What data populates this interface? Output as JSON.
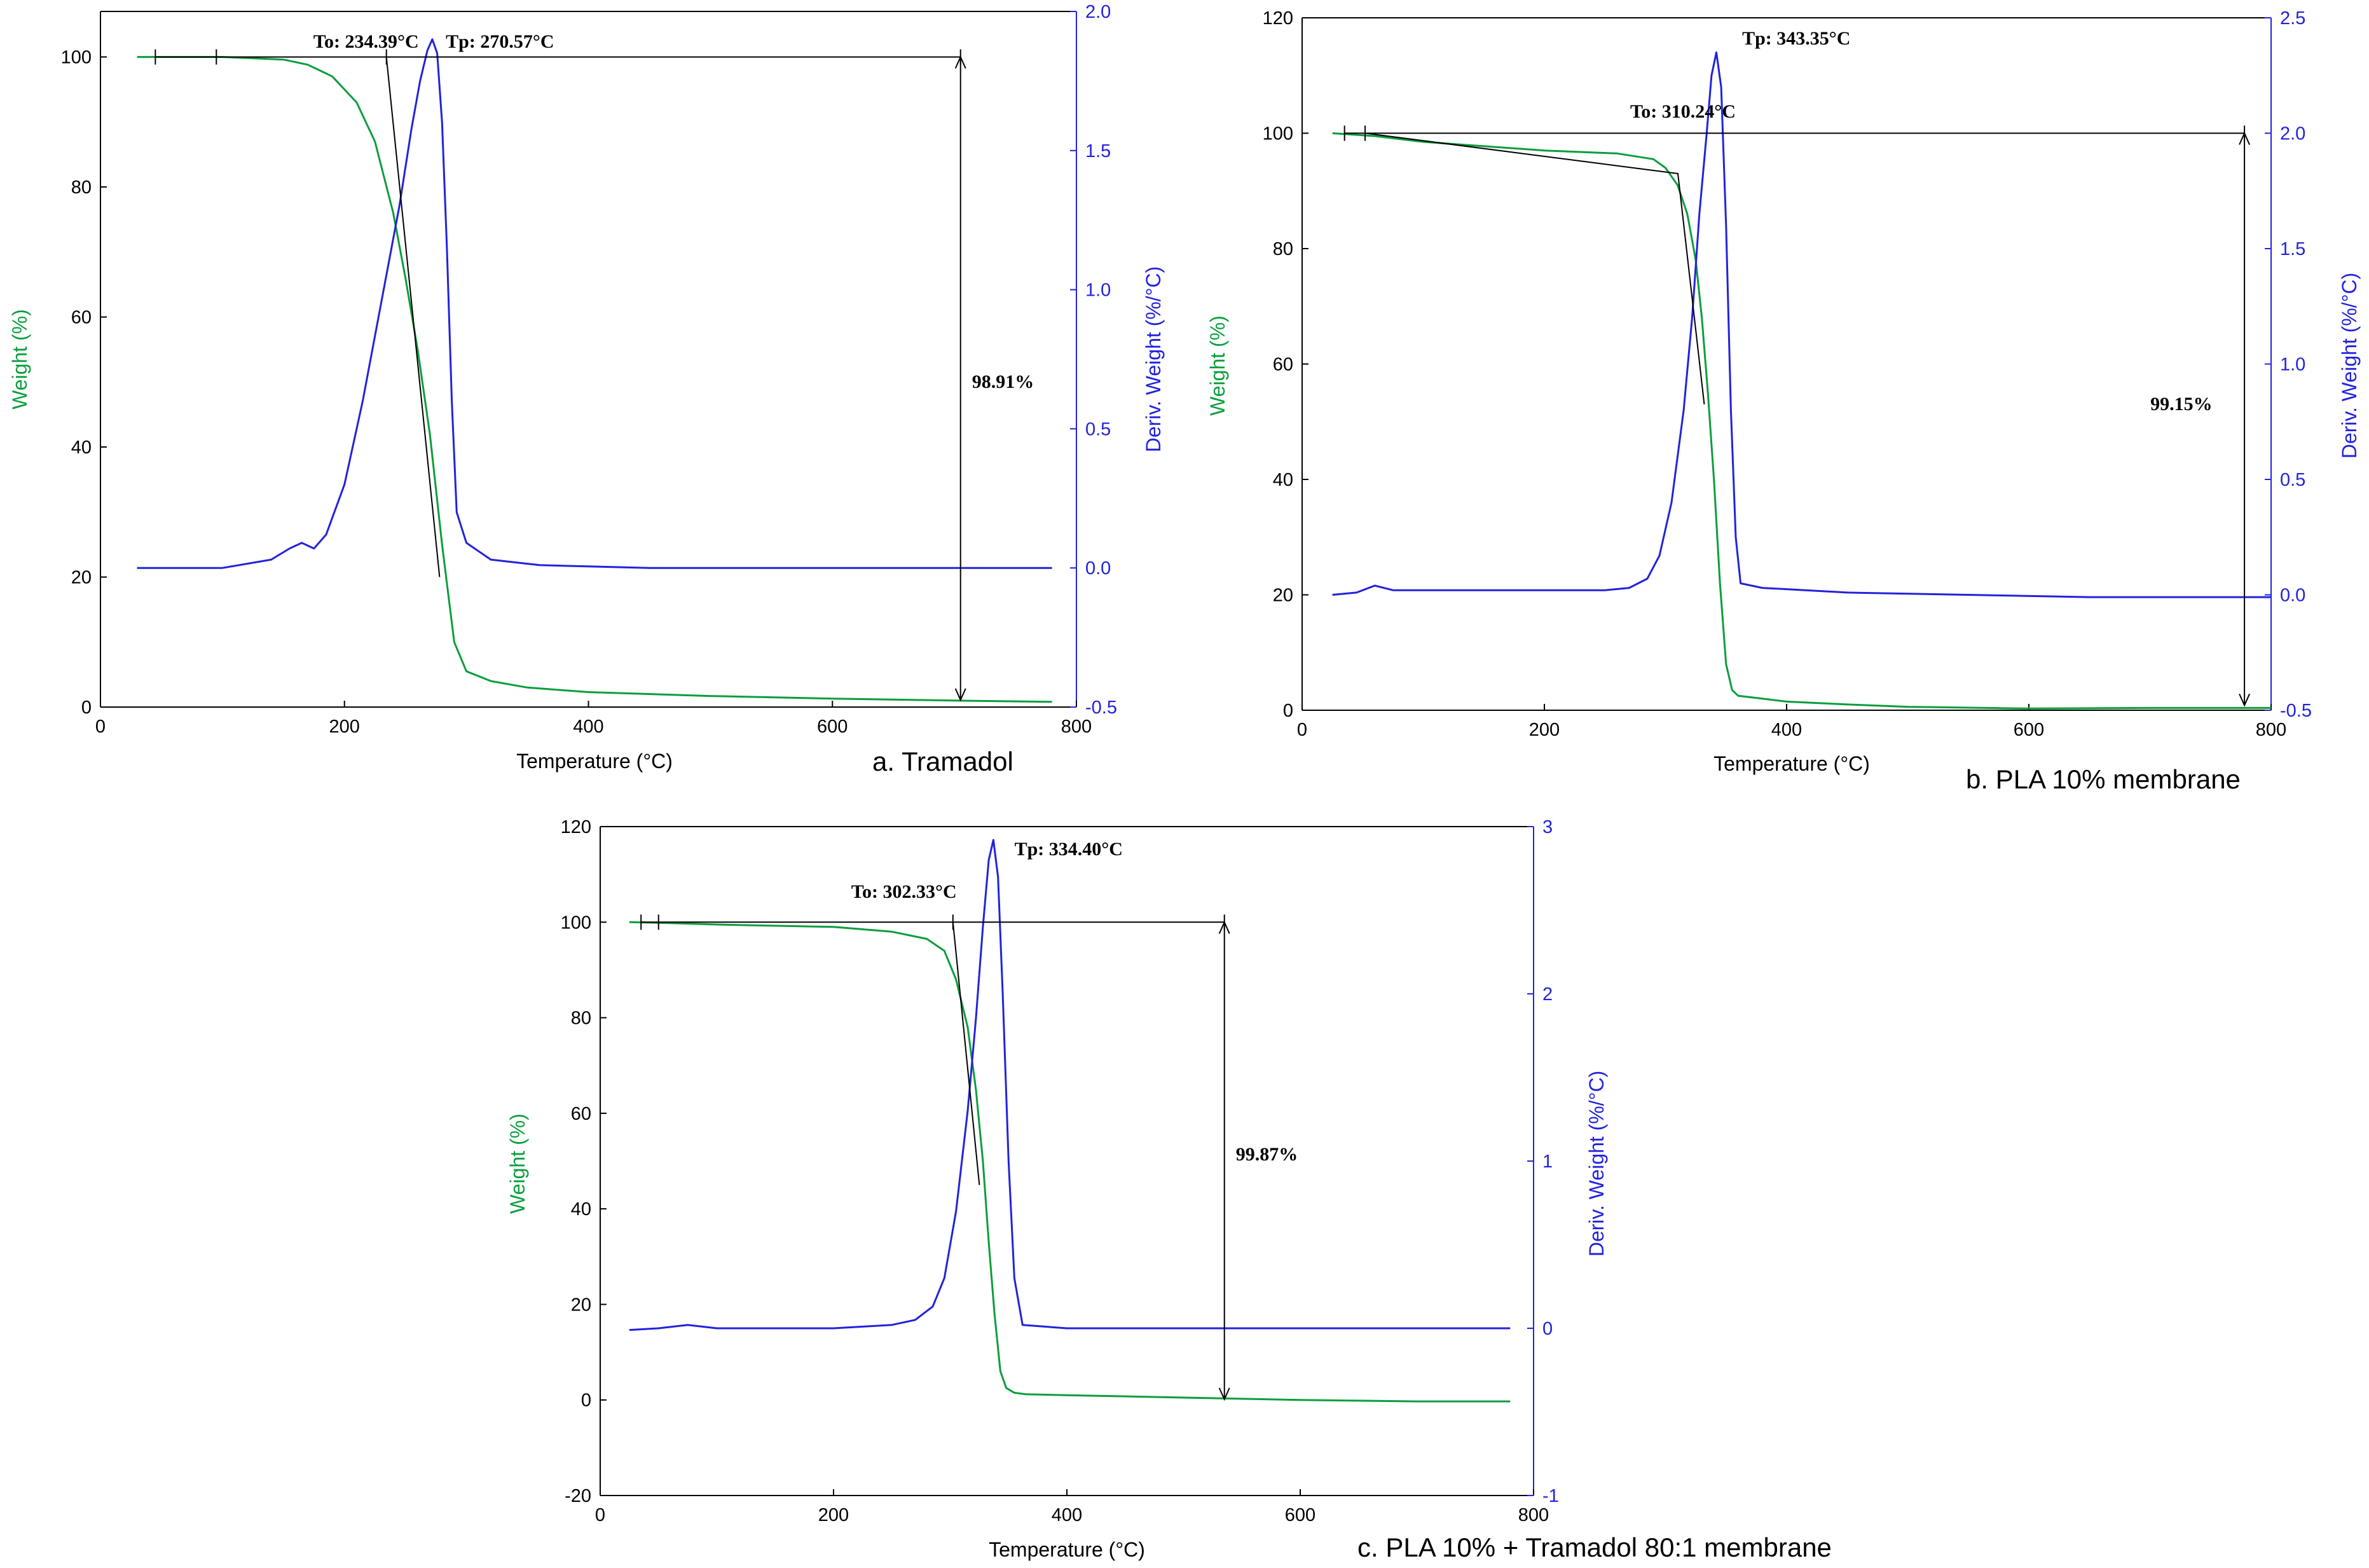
{
  "colors": {
    "weight": "#0a9e3c",
    "deriv": "#2222dd",
    "construction": "#000000"
  },
  "chart_data": [
    {
      "type": "line",
      "caption": "a. Tramadol",
      "xlabel": "Temperature (°C)",
      "ylabel": "Weight (%)",
      "y2label": "Deriv. Weight (%/°C)",
      "xlim": [
        0,
        800
      ],
      "ylim": [
        0,
        107
      ],
      "y2lim": [
        -0.5,
        2.0
      ],
      "xticks": [
        0,
        200,
        400,
        600,
        800
      ],
      "yticks": [
        0,
        20,
        40,
        60,
        80,
        100
      ],
      "y2ticks": [
        -0.5,
        0.0,
        0.5,
        1.0,
        1.5,
        2.0
      ],
      "y2tick_labels": [
        "-0.5",
        "0.0",
        "0.5",
        "1.0",
        "1.5",
        "2.0"
      ],
      "series": [
        {
          "axis": "left",
          "x": [
            30,
            100,
            150,
            170,
            190,
            210,
            225,
            240,
            250,
            260,
            270,
            280,
            290,
            300,
            320,
            350,
            400,
            500,
            600,
            700,
            780
          ],
          "y": [
            100,
            100,
            99.6,
            98.8,
            97,
            93,
            87,
            76,
            66,
            55,
            42,
            25,
            10,
            5.5,
            4,
            3,
            2.3,
            1.7,
            1.3,
            1.0,
            0.8
          ]
        },
        {
          "axis": "right",
          "x": [
            30,
            100,
            140,
            155,
            165,
            175,
            185,
            200,
            215,
            230,
            245,
            255,
            262,
            268,
            272,
            276,
            280,
            284,
            288,
            292,
            300,
            320,
            360,
            450,
            600,
            780
          ],
          "y": [
            0,
            0,
            0.03,
            0.07,
            0.09,
            0.07,
            0.12,
            0.3,
            0.6,
            0.95,
            1.3,
            1.58,
            1.75,
            1.86,
            1.9,
            1.85,
            1.6,
            1.15,
            0.6,
            0.2,
            0.09,
            0.03,
            0.01,
            0,
            0,
            0
          ]
        }
      ],
      "annotations": {
        "onset_label": "To: 234.39°C",
        "onset_x": 234.39,
        "peak_label": "Tp: 270.57°C",
        "peak_x": 270.57,
        "loss_label": "98.91%",
        "baseline_y": 100,
        "baseline_x": [
          45,
          705
        ],
        "baseline_marks_x": [
          45,
          95,
          234.39,
          705
        ],
        "tangent": {
          "x": [
            234.39,
            278
          ],
          "y": [
            100,
            20
          ]
        },
        "loss_arrow": {
          "x": 705,
          "y": [
            100,
            1.09
          ]
        }
      }
    },
    {
      "type": "line",
      "caption": "b. PLA 10% membrane",
      "xlabel": "Temperature (°C)",
      "ylabel": "Weight (%)",
      "y2label": "Deriv. Weight (%/°C)",
      "xlim": [
        0,
        800
      ],
      "ylim": [
        0,
        120
      ],
      "y2lim": [
        -0.5,
        2.5
      ],
      "xticks": [
        0,
        200,
        400,
        600,
        800
      ],
      "yticks": [
        0,
        20,
        40,
        60,
        80,
        100,
        120
      ],
      "y2ticks": [
        -0.5,
        0.0,
        0.5,
        1.0,
        1.5,
        2.0,
        2.5
      ],
      "y2tick_labels": [
        "-0.5",
        "0.0",
        "0.5",
        "1.0",
        "1.5",
        "2.0",
        "2.5"
      ],
      "series": [
        {
          "axis": "left",
          "x": [
            25,
            60,
            100,
            200,
            260,
            290,
            300,
            310,
            318,
            325,
            330,
            335,
            340,
            345,
            350,
            355,
            360,
            380,
            400,
            450,
            500,
            600,
            700,
            800
          ],
          "y": [
            100,
            99.5,
            98.5,
            97,
            96.5,
            95.5,
            94,
            91,
            86,
            78,
            68,
            55,
            40,
            22,
            8,
            3.5,
            2.5,
            2,
            1.5,
            1,
            0.6,
            0.3,
            0.4,
            0.4
          ]
        },
        {
          "axis": "right",
          "x": [
            25,
            45,
            60,
            75,
            100,
            150,
            200,
            250,
            270,
            285,
            295,
            305,
            315,
            322,
            328,
            334,
            338,
            342,
            346,
            350,
            354,
            358,
            362,
            380,
            450,
            550,
            650,
            800
          ],
          "y": [
            0,
            0.01,
            0.04,
            0.02,
            0.02,
            0.02,
            0.02,
            0.02,
            0.03,
            0.07,
            0.17,
            0.4,
            0.8,
            1.2,
            1.65,
            2.0,
            2.25,
            2.35,
            2.2,
            1.6,
            0.8,
            0.25,
            0.05,
            0.03,
            0.01,
            0.0,
            -0.01,
            -0.01
          ]
        }
      ],
      "annotations": {
        "onset_label": "To: 310.24°C",
        "onset_x": 310.24,
        "peak_label": "Tp: 343.35°C",
        "peak_x": 343.35,
        "loss_label": "99.15%",
        "baseline_y": 100,
        "baseline_x": [
          35,
          778
        ],
        "baseline_marks_x": [
          35,
          52,
          778
        ],
        "tangent": {
          "x": [
            52,
            310.24,
            332
          ],
          "y": [
            100,
            93,
            53
          ]
        },
        "loss_arrow": {
          "x": 778,
          "y": [
            100,
            0.85
          ]
        }
      }
    },
    {
      "type": "line",
      "caption": "c. PLA 10% + Tramadol 80:1 membrane",
      "xlabel": "Temperature (°C)",
      "ylabel": "Weight (%)",
      "y2label": "Deriv. Weight (%/°C)",
      "xlim": [
        0,
        800
      ],
      "ylim": [
        -20,
        120
      ],
      "y2lim": [
        -1,
        3
      ],
      "xticks": [
        0,
        200,
        400,
        600,
        800
      ],
      "yticks": [
        -20,
        0,
        20,
        40,
        60,
        80,
        100,
        120
      ],
      "y2ticks": [
        -1,
        0,
        1,
        2,
        3
      ],
      "y2tick_labels": [
        "-1",
        "0",
        "1",
        "2",
        "3"
      ],
      "series": [
        {
          "axis": "left",
          "x": [
            25,
            60,
            100,
            200,
            250,
            280,
            295,
            305,
            315,
            322,
            328,
            333,
            338,
            343,
            348,
            355,
            365,
            400,
            500,
            600,
            700,
            780
          ],
          "y": [
            100,
            99.8,
            99.5,
            99,
            98,
            96.5,
            94,
            88,
            78,
            65,
            50,
            33,
            18,
            6,
            2.5,
            1.5,
            1.2,
            1,
            0.5,
            0,
            -0.3,
            -0.3
          ]
        },
        {
          "axis": "right",
          "x": [
            25,
            50,
            75,
            100,
            150,
            200,
            250,
            270,
            285,
            295,
            305,
            315,
            322,
            328,
            333,
            337,
            341,
            345,
            350,
            355,
            362,
            400,
            500,
            600,
            780
          ],
          "y": [
            -0.01,
            0,
            0.02,
            0,
            0,
            0,
            0.02,
            0.05,
            0.13,
            0.3,
            0.7,
            1.3,
            1.85,
            2.4,
            2.8,
            2.92,
            2.7,
            2.0,
            1.0,
            0.3,
            0.02,
            0,
            0,
            0,
            0
          ]
        }
      ],
      "annotations": {
        "onset_label": "To: 302.33°C",
        "onset_x": 302.33,
        "peak_label": "Tp: 334.40°C",
        "peak_x": 334.4,
        "loss_label": "99.87%",
        "baseline_y": 100,
        "baseline_x": [
          35,
          535
        ],
        "baseline_marks_x": [
          35,
          50,
          302.33,
          535
        ],
        "tangent": {
          "x": [
            302.33,
            325
          ],
          "y": [
            100,
            45
          ]
        },
        "loss_arrow": {
          "x": 535,
          "y": [
            100,
            0.13
          ]
        }
      }
    }
  ]
}
